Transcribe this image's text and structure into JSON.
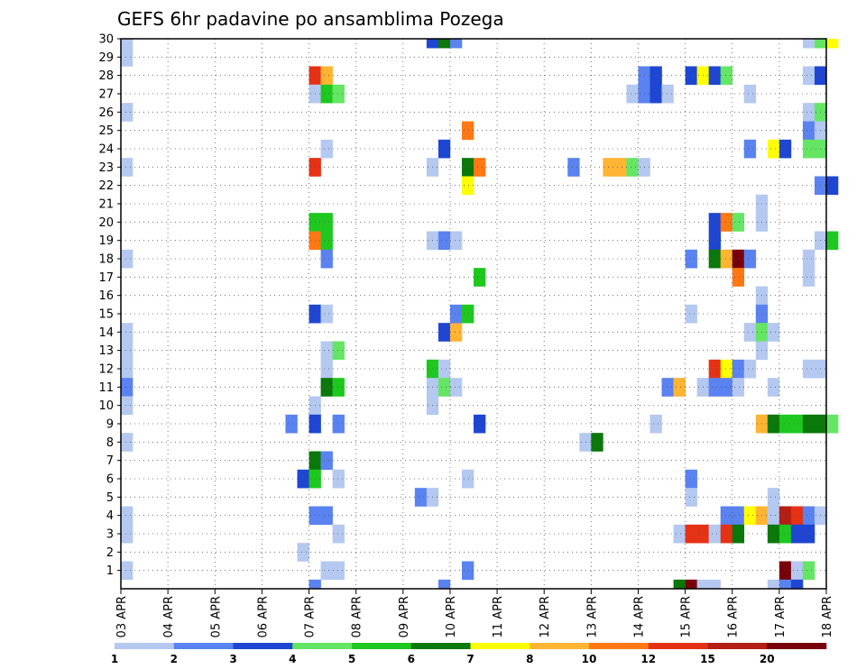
{
  "chart_data": {
    "type": "heatmap",
    "title": "GEFS 6hr padavine po ansamblima Pozega",
    "x_tick_labels": [
      "03 APR",
      "04 APR",
      "05 APR",
      "06 APR",
      "07 APR",
      "08 APR",
      "09 APR",
      "10 APR",
      "11 APR",
      "12 APR",
      "13 APR",
      "14 APR",
      "15 APR",
      "16 APR",
      "17 APR",
      "18 APR"
    ],
    "y_tick_labels": [
      "1",
      "2",
      "3",
      "4",
      "5",
      "6",
      "7",
      "8",
      "9",
      "10",
      "11",
      "12",
      "13",
      "14",
      "15",
      "16",
      "17",
      "18",
      "19",
      "20",
      "21",
      "22",
      "23",
      "24",
      "25",
      "26",
      "27",
      "28",
      "29",
      "30"
    ],
    "xlim": [
      0,
      15
    ],
    "ylim": [
      0,
      30
    ],
    "grid": true,
    "legend": {
      "placement": "bottom",
      "labels": [
        "1",
        "2",
        "3",
        "4",
        "5",
        "6",
        "7",
        "8",
        "10",
        "12",
        "15",
        "20"
      ],
      "colors": [
        "#b4c8f0",
        "#5a82f0",
        "#1e46d2",
        "#64e664",
        "#1ec81e",
        "#0a780a",
        "#ffff00",
        "#ffb432",
        "#ff7814",
        "#e63214",
        "#b41e14",
        "#78000a"
      ]
    },
    "cells": [
      {
        "member": 30,
        "time": 0.0,
        "bin": 1
      },
      {
        "member": 29,
        "time": 0.0,
        "bin": 1
      },
      {
        "member": 26,
        "time": 0.0,
        "bin": 1
      },
      {
        "member": 23,
        "time": 0.0,
        "bin": 1
      },
      {
        "member": 18,
        "time": 0.0,
        "bin": 1
      },
      {
        "member": 14,
        "time": 0.0,
        "bin": 1
      },
      {
        "member": 13,
        "time": 0.0,
        "bin": 1
      },
      {
        "member": 12,
        "time": 0.0,
        "bin": 1
      },
      {
        "member": 11,
        "time": 0.0,
        "bin": 2
      },
      {
        "member": 10,
        "time": 0.0,
        "bin": 1
      },
      {
        "member": 8,
        "time": 0.0,
        "bin": 1
      },
      {
        "member": 4,
        "time": 0.0,
        "bin": 1
      },
      {
        "member": 3,
        "time": 0.0,
        "bin": 1
      },
      {
        "member": 1,
        "time": 0.0,
        "bin": 1
      },
      {
        "member": 9,
        "time": 3.5,
        "bin": 2
      },
      {
        "member": 6,
        "time": 3.75,
        "bin": 3
      },
      {
        "member": 2,
        "time": 3.75,
        "bin": 1
      },
      {
        "member": 28,
        "time": 4.0,
        "bin": 10
      },
      {
        "member": 28,
        "time": 4.25,
        "bin": 8
      },
      {
        "member": 27,
        "time": 4.0,
        "bin": 1
      },
      {
        "member": 27,
        "time": 4.25,
        "bin": 5
      },
      {
        "member": 27,
        "time": 4.5,
        "bin": 4
      },
      {
        "member": 24,
        "time": 4.25,
        "bin": 1
      },
      {
        "member": 23,
        "time": 4.0,
        "bin": 10
      },
      {
        "member": 20,
        "time": 4.0,
        "bin": 5
      },
      {
        "member": 20,
        "time": 4.25,
        "bin": 5
      },
      {
        "member": 19,
        "time": 4.0,
        "bin": 9
      },
      {
        "member": 19,
        "time": 4.25,
        "bin": 5
      },
      {
        "member": 18,
        "time": 4.25,
        "bin": 2
      },
      {
        "member": 15,
        "time": 4.0,
        "bin": 3
      },
      {
        "member": 15,
        "time": 4.25,
        "bin": 1
      },
      {
        "member": 13,
        "time": 4.25,
        "bin": 1
      },
      {
        "member": 13,
        "time": 4.5,
        "bin": 4
      },
      {
        "member": 12,
        "time": 4.25,
        "bin": 1
      },
      {
        "member": 11,
        "time": 4.25,
        "bin": 6
      },
      {
        "member": 11,
        "time": 4.5,
        "bin": 5
      },
      {
        "member": 10,
        "time": 4.0,
        "bin": 1
      },
      {
        "member": 9,
        "time": 4.0,
        "bin": 3
      },
      {
        "member": 9,
        "time": 4.5,
        "bin": 2
      },
      {
        "member": 7,
        "time": 4.0,
        "bin": 6
      },
      {
        "member": 7,
        "time": 4.25,
        "bin": 2
      },
      {
        "member": 6,
        "time": 4.0,
        "bin": 5
      },
      {
        "member": 6,
        "time": 4.5,
        "bin": 1
      },
      {
        "member": 4,
        "time": 4.0,
        "bin": 2
      },
      {
        "member": 4,
        "time": 4.25,
        "bin": 2
      },
      {
        "member": 3,
        "time": 4.5,
        "bin": 1
      },
      {
        "member": 1,
        "time": 4.25,
        "bin": 1
      },
      {
        "member": 1,
        "time": 4.5,
        "bin": 1
      },
      {
        "member": 0,
        "time": 4.0,
        "bin": 2
      },
      {
        "member": 5,
        "time": 6.25,
        "bin": 2
      },
      {
        "member": 5,
        "time": 6.5,
        "bin": 1
      },
      {
        "member": 30,
        "time": 6.5,
        "bin": 3
      },
      {
        "member": 30,
        "time": 6.75,
        "bin": 6
      },
      {
        "member": 30,
        "time": 7.0,
        "bin": 2
      },
      {
        "member": 24,
        "time": 6.75,
        "bin": 3
      },
      {
        "member": 23,
        "time": 6.5,
        "bin": 1
      },
      {
        "member": 19,
        "time": 6.5,
        "bin": 1
      },
      {
        "member": 19,
        "time": 6.75,
        "bin": 2
      },
      {
        "member": 19,
        "time": 7.0,
        "bin": 1
      },
      {
        "member": 14,
        "time": 6.75,
        "bin": 3
      },
      {
        "member": 14,
        "time": 7.0,
        "bin": 8
      },
      {
        "member": 15,
        "time": 7.0,
        "bin": 2
      },
      {
        "member": 15,
        "time": 7.25,
        "bin": 5
      },
      {
        "member": 12,
        "time": 6.5,
        "bin": 5
      },
      {
        "member": 12,
        "time": 6.75,
        "bin": 1
      },
      {
        "member": 11,
        "time": 6.5,
        "bin": 1
      },
      {
        "member": 11,
        "time": 6.75,
        "bin": 4
      },
      {
        "member": 11,
        "time": 7.0,
        "bin": 1
      },
      {
        "member": 10,
        "time": 6.5,
        "bin": 1
      },
      {
        "member": 0,
        "time": 6.75,
        "bin": 2
      },
      {
        "member": 25,
        "time": 7.25,
        "bin": 9
      },
      {
        "member": 23,
        "time": 7.25,
        "bin": 6
      },
      {
        "member": 23,
        "time": 7.5,
        "bin": 9
      },
      {
        "member": 22,
        "time": 7.25,
        "bin": 7
      },
      {
        "member": 17,
        "time": 7.5,
        "bin": 5
      },
      {
        "member": 9,
        "time": 7.5,
        "bin": 3
      },
      {
        "member": 6,
        "time": 7.25,
        "bin": 1
      },
      {
        "member": 1,
        "time": 7.25,
        "bin": 2
      },
      {
        "member": 23,
        "time": 9.5,
        "bin": 2
      },
      {
        "member": 8,
        "time": 9.75,
        "bin": 1
      },
      {
        "member": 8,
        "time": 10.0,
        "bin": 6
      },
      {
        "member": 23,
        "time": 10.25,
        "bin": 8
      },
      {
        "member": 23,
        "time": 10.5,
        "bin": 8
      },
      {
        "member": 23,
        "time": 10.75,
        "bin": 4
      },
      {
        "member": 23,
        "time": 11.0,
        "bin": 1
      },
      {
        "member": 28,
        "time": 11.0,
        "bin": 2
      },
      {
        "member": 28,
        "time": 11.25,
        "bin": 3
      },
      {
        "member": 27,
        "time": 10.75,
        "bin": 1
      },
      {
        "member": 27,
        "time": 11.0,
        "bin": 2
      },
      {
        "member": 27,
        "time": 11.25,
        "bin": 3
      },
      {
        "member": 27,
        "time": 11.5,
        "bin": 1
      },
      {
        "member": 9,
        "time": 11.25,
        "bin": 1
      },
      {
        "member": 11,
        "time": 11.5,
        "bin": 2
      },
      {
        "member": 11,
        "time": 11.75,
        "bin": 8
      },
      {
        "member": 28,
        "time": 12.0,
        "bin": 3
      },
      {
        "member": 28,
        "time": 12.25,
        "bin": 7
      },
      {
        "member": 28,
        "time": 12.5,
        "bin": 3
      },
      {
        "member": 28,
        "time": 12.75,
        "bin": 4
      },
      {
        "member": 27,
        "time": 13.25,
        "bin": 1
      },
      {
        "member": 24,
        "time": 13.25,
        "bin": 2
      },
      {
        "member": 20,
        "time": 12.5,
        "bin": 3
      },
      {
        "member": 20,
        "time": 12.75,
        "bin": 9
      },
      {
        "member": 20,
        "time": 13.0,
        "bin": 4
      },
      {
        "member": 19,
        "time": 12.5,
        "bin": 3
      },
      {
        "member": 18,
        "time": 12.0,
        "bin": 2
      },
      {
        "member": 18,
        "time": 12.5,
        "bin": 6
      },
      {
        "member": 18,
        "time": 12.75,
        "bin": 8
      },
      {
        "member": 18,
        "time": 13.0,
        "bin": 12
      },
      {
        "member": 18,
        "time": 13.25,
        "bin": 2
      },
      {
        "member": 17,
        "time": 13.0,
        "bin": 9
      },
      {
        "member": 15,
        "time": 12.0,
        "bin": 1
      },
      {
        "member": 12,
        "time": 12.5,
        "bin": 10
      },
      {
        "member": 12,
        "time": 12.75,
        "bin": 7
      },
      {
        "member": 12,
        "time": 13.0,
        "bin": 2
      },
      {
        "member": 12,
        "time": 13.25,
        "bin": 1
      },
      {
        "member": 11,
        "time": 12.25,
        "bin": 1
      },
      {
        "member": 11,
        "time": 12.5,
        "bin": 2
      },
      {
        "member": 11,
        "time": 12.75,
        "bin": 2
      },
      {
        "member": 11,
        "time": 13.0,
        "bin": 1
      },
      {
        "member": 6,
        "time": 12.0,
        "bin": 2
      },
      {
        "member": 5,
        "time": 12.0,
        "bin": 1
      },
      {
        "member": 4,
        "time": 12.75,
        "bin": 2
      },
      {
        "member": 4,
        "time": 13.0,
        "bin": 2
      },
      {
        "member": 4,
        "time": 13.25,
        "bin": 7
      },
      {
        "member": 3,
        "time": 11.75,
        "bin": 1
      },
      {
        "member": 3,
        "time": 12.0,
        "bin": 10
      },
      {
        "member": 3,
        "time": 12.25,
        "bin": 10
      },
      {
        "member": 3,
        "time": 12.5,
        "bin": 1
      },
      {
        "member": 3,
        "time": 12.75,
        "bin": 10
      },
      {
        "member": 3,
        "time": 13.0,
        "bin": 6
      },
      {
        "member": 0,
        "time": 11.75,
        "bin": 6
      },
      {
        "member": 0,
        "time": 12.0,
        "bin": 12
      },
      {
        "member": 0,
        "time": 12.25,
        "bin": 1
      },
      {
        "member": 0,
        "time": 12.5,
        "bin": 1
      },
      {
        "member": 30,
        "time": 14.5,
        "bin": 1
      },
      {
        "member": 30,
        "time": 14.75,
        "bin": 4
      },
      {
        "member": 30,
        "time": 15.0,
        "bin": 7
      },
      {
        "member": 28,
        "time": 14.5,
        "bin": 1
      },
      {
        "member": 28,
        "time": 14.75,
        "bin": 3
      },
      {
        "member": 26,
        "time": 14.5,
        "bin": 1
      },
      {
        "member": 26,
        "time": 14.75,
        "bin": 4
      },
      {
        "member": 25,
        "time": 14.5,
        "bin": 2
      },
      {
        "member": 25,
        "time": 14.75,
        "bin": 1
      },
      {
        "member": 24,
        "time": 13.75,
        "bin": 7
      },
      {
        "member": 24,
        "time": 14.0,
        "bin": 3
      },
      {
        "member": 24,
        "time": 14.5,
        "bin": 4
      },
      {
        "member": 24,
        "time": 14.75,
        "bin": 4
      },
      {
        "member": 22,
        "time": 14.75,
        "bin": 2
      },
      {
        "member": 22,
        "time": 15.0,
        "bin": 3
      },
      {
        "member": 21,
        "time": 13.5,
        "bin": 1
      },
      {
        "member": 20,
        "time": 13.5,
        "bin": 1
      },
      {
        "member": 19,
        "time": 14.75,
        "bin": 1
      },
      {
        "member": 19,
        "time": 15.0,
        "bin": 5
      },
      {
        "member": 18,
        "time": 14.5,
        "bin": 1
      },
      {
        "member": 17,
        "time": 14.5,
        "bin": 1
      },
      {
        "member": 16,
        "time": 13.5,
        "bin": 1
      },
      {
        "member": 15,
        "time": 13.5,
        "bin": 2
      },
      {
        "member": 14,
        "time": 13.25,
        "bin": 1
      },
      {
        "member": 14,
        "time": 13.5,
        "bin": 4
      },
      {
        "member": 14,
        "time": 13.75,
        "bin": 1
      },
      {
        "member": 13,
        "time": 13.5,
        "bin": 1
      },
      {
        "member": 12,
        "time": 14.5,
        "bin": 1
      },
      {
        "member": 12,
        "time": 14.75,
        "bin": 1
      },
      {
        "member": 11,
        "time": 13.75,
        "bin": 1
      },
      {
        "member": 9,
        "time": 13.5,
        "bin": 8
      },
      {
        "member": 9,
        "time": 13.75,
        "bin": 6
      },
      {
        "member": 9,
        "time": 14.0,
        "bin": 5
      },
      {
        "member": 9,
        "time": 14.25,
        "bin": 5
      },
      {
        "member": 9,
        "time": 14.5,
        "bin": 6
      },
      {
        "member": 9,
        "time": 14.75,
        "bin": 6
      },
      {
        "member": 9,
        "time": 15.0,
        "bin": 4
      },
      {
        "member": 5,
        "time": 13.75,
        "bin": 1
      },
      {
        "member": 4,
        "time": 13.5,
        "bin": 8
      },
      {
        "member": 4,
        "time": 13.75,
        "bin": 1
      },
      {
        "member": 4,
        "time": 14.0,
        "bin": 11
      },
      {
        "member": 4,
        "time": 14.25,
        "bin": 10
      },
      {
        "member": 4,
        "time": 14.5,
        "bin": 2
      },
      {
        "member": 4,
        "time": 14.75,
        "bin": 1
      },
      {
        "member": 3,
        "time": 13.75,
        "bin": 6
      },
      {
        "member": 3,
        "time": 14.0,
        "bin": 5
      },
      {
        "member": 3,
        "time": 14.25,
        "bin": 3
      },
      {
        "member": 3,
        "time": 14.5,
        "bin": 3
      },
      {
        "member": 1,
        "time": 14.0,
        "bin": 12
      },
      {
        "member": 1,
        "time": 14.25,
        "bin": 1
      },
      {
        "member": 1,
        "time": 14.5,
        "bin": 4
      },
      {
        "member": 0,
        "time": 13.75,
        "bin": 1
      },
      {
        "member": 0,
        "time": 14.0,
        "bin": 2
      },
      {
        "member": 0,
        "time": 14.25,
        "bin": 3
      }
    ]
  }
}
